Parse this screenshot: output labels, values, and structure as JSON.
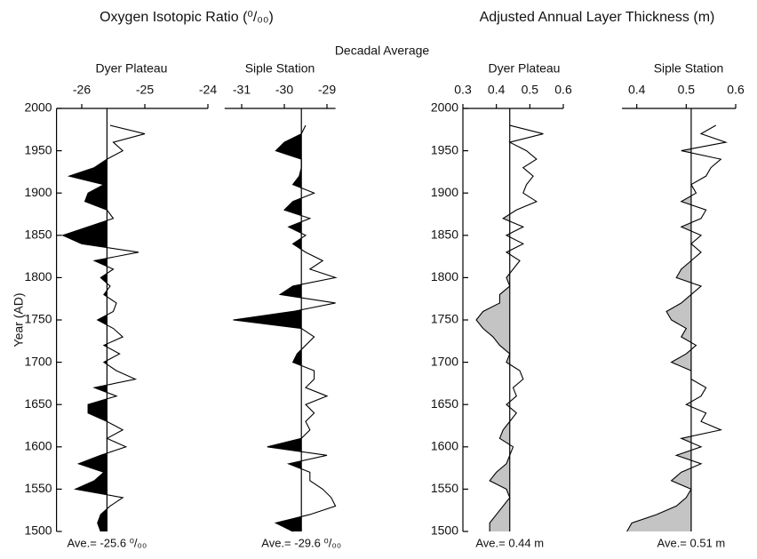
{
  "figure": {
    "left_title": "Oxygen Isotopic Ratio (⁰/₀₀)",
    "right_title": "Adjusted Annual Layer Thickness (m)",
    "center_title": "Decadal Average",
    "ylabel": "Year (AD)"
  },
  "chart_data": [
    {
      "type": "line",
      "subtitle": "Dyer Plateau",
      "color": "#000000",
      "fill_color": "#000000",
      "y": [
        1980,
        1970,
        1960,
        1950,
        1940,
        1930,
        1920,
        1910,
        1900,
        1890,
        1880,
        1870,
        1860,
        1850,
        1840,
        1830,
        1820,
        1810,
        1800,
        1790,
        1780,
        1770,
        1760,
        1750,
        1740,
        1730,
        1720,
        1710,
        1700,
        1690,
        1680,
        1670,
        1660,
        1650,
        1640,
        1630,
        1620,
        1610,
        1600,
        1590,
        1580,
        1570,
        1560,
        1550,
        1540,
        1530,
        1520,
        1510,
        1500
      ],
      "values": [
        -25.55,
        -25.0,
        -25.5,
        -25.35,
        -25.6,
        -25.8,
        -26.2,
        -25.65,
        -25.9,
        -25.95,
        -25.6,
        -25.5,
        -25.9,
        -26.3,
        -26.0,
        -25.1,
        -25.8,
        -25.5,
        -25.7,
        -25.55,
        -25.65,
        -25.45,
        -25.5,
        -25.75,
        -25.5,
        -25.35,
        -25.65,
        -25.4,
        -25.65,
        -25.45,
        -25.15,
        -25.8,
        -25.45,
        -25.9,
        -25.9,
        -25.6,
        -25.35,
        -25.6,
        -25.3,
        -25.7,
        -26.05,
        -25.65,
        -25.8,
        -26.1,
        -25.35,
        -25.55,
        -25.7,
        -25.75,
        -25.7
      ],
      "average": -25.6,
      "average_label": "Ave.= -25.6 ⁰/₀₀",
      "xlim": [
        -26.4,
        -24
      ],
      "xticks": [
        -26,
        -25,
        -24
      ],
      "ylim": [
        1500,
        2000
      ],
      "yticks": [
        1500,
        1550,
        1600,
        1650,
        1700,
        1750,
        1800,
        1850,
        1900,
        1950,
        2000
      ]
    },
    {
      "type": "line",
      "subtitle": "Siple Station",
      "color": "#000000",
      "fill_color": "#000000",
      "y": [
        1980,
        1970,
        1960,
        1950,
        1940,
        1930,
        1920,
        1910,
        1900,
        1890,
        1880,
        1870,
        1860,
        1850,
        1840,
        1830,
        1820,
        1810,
        1800,
        1790,
        1780,
        1770,
        1760,
        1750,
        1740,
        1730,
        1720,
        1710,
        1700,
        1690,
        1680,
        1670,
        1660,
        1650,
        1640,
        1630,
        1620,
        1610,
        1600,
        1590,
        1580,
        1570,
        1560,
        1550,
        1540,
        1530,
        1520,
        1510,
        1500
      ],
      "values": [
        -29.5,
        -29.6,
        -30.0,
        -30.2,
        -29.6,
        -29.6,
        -29.65,
        -29.8,
        -29.3,
        -29.8,
        -30.0,
        -29.4,
        -29.9,
        -29.5,
        -29.8,
        -29.5,
        -29.1,
        -29.4,
        -28.8,
        -29.8,
        -30.1,
        -28.8,
        -29.8,
        -31.2,
        -29.6,
        -29.3,
        -29.5,
        -29.7,
        -29.8,
        -29.3,
        -29.3,
        -29.5,
        -29.0,
        -29.5,
        -29.3,
        -29.5,
        -29.4,
        -29.6,
        -30.4,
        -29.0,
        -29.9,
        -29.4,
        -29.4,
        -29.1,
        -28.9,
        -28.8,
        -29.4,
        -30.2,
        -29.8
      ],
      "average": -29.6,
      "average_label": "Ave.= -29.6 ⁰/₀₀",
      "xlim": [
        -31.4,
        -28.8
      ],
      "xticks": [
        -31,
        -30,
        -29
      ],
      "ylim": [
        1500,
        2000
      ]
    },
    {
      "type": "line",
      "subtitle": "Dyer Plateau",
      "color": "#000000",
      "fill_color": "#c4c4c4",
      "y": [
        1980,
        1970,
        1960,
        1950,
        1940,
        1930,
        1920,
        1910,
        1900,
        1890,
        1880,
        1870,
        1860,
        1850,
        1840,
        1830,
        1820,
        1810,
        1800,
        1790,
        1780,
        1770,
        1760,
        1750,
        1740,
        1730,
        1720,
        1710,
        1700,
        1690,
        1680,
        1670,
        1660,
        1650,
        1640,
        1630,
        1620,
        1610,
        1600,
        1590,
        1580,
        1570,
        1560,
        1550,
        1540,
        1530,
        1520,
        1510,
        1500
      ],
      "values": [
        0.44,
        0.54,
        0.44,
        0.49,
        0.52,
        0.48,
        0.51,
        0.49,
        0.48,
        0.52,
        0.46,
        0.42,
        0.48,
        0.43,
        0.48,
        0.43,
        0.47,
        0.45,
        0.43,
        0.44,
        0.41,
        0.41,
        0.36,
        0.34,
        0.36,
        0.39,
        0.41,
        0.44,
        0.43,
        0.47,
        0.48,
        0.45,
        0.46,
        0.43,
        0.46,
        0.44,
        0.42,
        0.41,
        0.45,
        0.44,
        0.43,
        0.4,
        0.38,
        0.43,
        0.44,
        0.42,
        0.4,
        0.38,
        0.38
      ],
      "average": 0.44,
      "average_label": "Ave.= 0.44 m",
      "xlim": [
        0.3,
        0.6
      ],
      "xticks": [
        0.3,
        0.4,
        0.5,
        0.6
      ],
      "ylim": [
        1500,
        2000
      ],
      "yticks": [
        1500,
        1550,
        1600,
        1650,
        1700,
        1750,
        1800,
        1850,
        1900,
        1950,
        2000
      ]
    },
    {
      "type": "line",
      "subtitle": "Siple Station",
      "color": "#000000",
      "fill_color": "#c4c4c4",
      "y": [
        1980,
        1970,
        1960,
        1950,
        1940,
        1930,
        1920,
        1910,
        1900,
        1890,
        1880,
        1870,
        1860,
        1850,
        1840,
        1830,
        1820,
        1810,
        1800,
        1790,
        1780,
        1770,
        1760,
        1750,
        1740,
        1730,
        1720,
        1710,
        1700,
        1690,
        1680,
        1670,
        1660,
        1650,
        1640,
        1630,
        1620,
        1610,
        1600,
        1590,
        1580,
        1570,
        1560,
        1550,
        1540,
        1530,
        1520,
        1510,
        1500
      ],
      "values": [
        0.56,
        0.53,
        0.58,
        0.49,
        0.57,
        0.55,
        0.54,
        0.51,
        0.52,
        0.49,
        0.54,
        0.53,
        0.49,
        0.53,
        0.51,
        0.53,
        0.51,
        0.49,
        0.48,
        0.53,
        0.51,
        0.49,
        0.46,
        0.47,
        0.5,
        0.49,
        0.52,
        0.5,
        0.47,
        0.51,
        0.51,
        0.54,
        0.53,
        0.5,
        0.54,
        0.53,
        0.57,
        0.49,
        0.53,
        0.48,
        0.53,
        0.49,
        0.47,
        0.51,
        0.5,
        0.48,
        0.44,
        0.39,
        0.38
      ],
      "average": 0.51,
      "average_label": "Ave.= 0.51 m",
      "xlim": [
        0.37,
        0.6
      ],
      "xticks": [
        0.4,
        0.5,
        0.6
      ],
      "ylim": [
        1500,
        2000
      ]
    }
  ]
}
